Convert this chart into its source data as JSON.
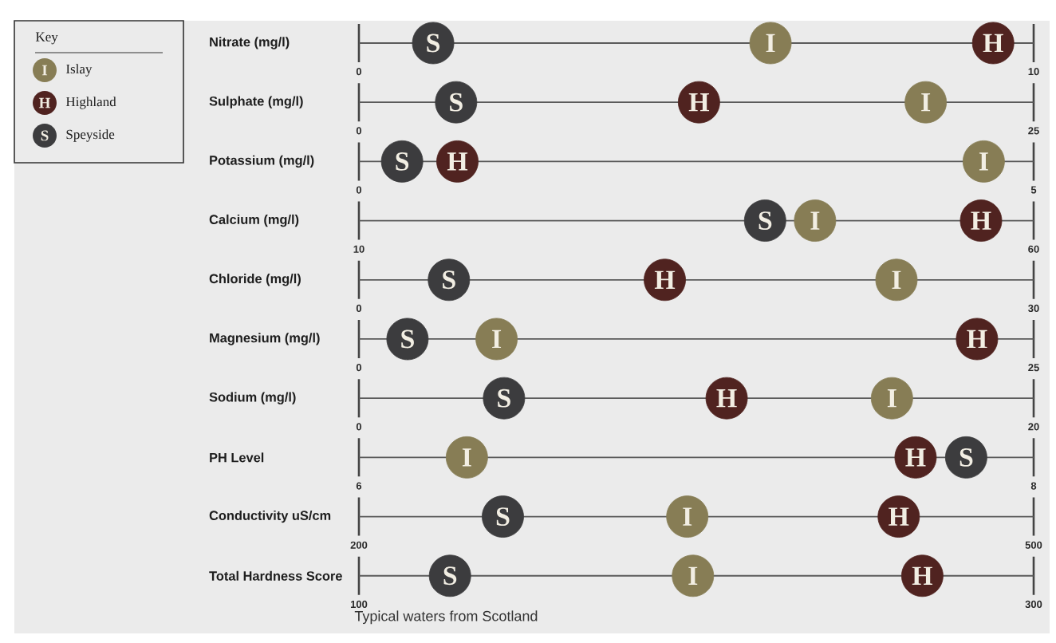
{
  "chart_data": [
    {
      "type": "scatter",
      "orientation": "horizontal",
      "categories": [
        "Nitrate (mg/l)"
      ],
      "xlim": [
        0,
        10
      ],
      "xticks": [
        0,
        10
      ],
      "marker": "circle",
      "legend": "left",
      "legend_title": "Key",
      "series": [
        {
          "name": "Islay",
          "color": "#877d55",
          "values": [
            6.1
          ],
          "value_labels": [
            "I"
          ]
        },
        {
          "name": "Highland",
          "color": "#502320",
          "values": [
            9.4
          ],
          "value_labels": [
            "H"
          ]
        },
        {
          "name": "Speyside",
          "color": "#3c3c3e",
          "values": [
            1.1
          ],
          "value_labels": [
            "S"
          ]
        }
      ]
    },
    {
      "type": "scatter",
      "orientation": "horizontal",
      "categories": [
        "Sulphate (mg/l)"
      ],
      "xlim": [
        0,
        25
      ],
      "xticks": [
        0,
        25
      ],
      "marker": "circle",
      "series": [
        {
          "color": "#877d55",
          "values": [
            21.0
          ],
          "value_labels": [
            "I"
          ]
        },
        {
          "color": "#502320",
          "values": [
            12.6
          ],
          "value_labels": [
            "H"
          ]
        },
        {
          "color": "#3c3c3e",
          "values": [
            3.6
          ],
          "value_labels": [
            "S"
          ]
        }
      ]
    },
    {
      "type": "scatter",
      "orientation": "horizontal",
      "categories": [
        "Potassium (mg/l)"
      ],
      "xlim": [
        0,
        5
      ],
      "xticks": [
        0,
        5
      ],
      "marker": "circle",
      "series": [
        {
          "color": "#877d55",
          "values": [
            4.63
          ],
          "value_labels": [
            "I"
          ]
        },
        {
          "color": "#502320",
          "values": [
            0.73
          ],
          "value_labels": [
            "H"
          ]
        },
        {
          "color": "#3c3c3e",
          "values": [
            0.32
          ],
          "value_labels": [
            "S"
          ]
        }
      ]
    },
    {
      "type": "scatter",
      "orientation": "horizontal",
      "categories": [
        "Calcium (mg/l)"
      ],
      "xlim": [
        10,
        60
      ],
      "xticks": [
        10,
        60
      ],
      "marker": "circle",
      "series": [
        {
          "color": "#877d55",
          "values": [
            43.8
          ],
          "value_labels": [
            "I"
          ]
        },
        {
          "color": "#502320",
          "values": [
            56.1
          ],
          "value_labels": [
            "H"
          ]
        },
        {
          "color": "#3c3c3e",
          "values": [
            40.1
          ],
          "value_labels": [
            "S"
          ]
        }
      ]
    },
    {
      "type": "scatter",
      "orientation": "horizontal",
      "categories": [
        "Chloride (mg/l)"
      ],
      "xlim": [
        0,
        30
      ],
      "xticks": [
        0,
        30
      ],
      "marker": "circle",
      "series": [
        {
          "color": "#877d55",
          "values": [
            23.9
          ],
          "value_labels": [
            "I"
          ]
        },
        {
          "color": "#502320",
          "values": [
            13.6
          ],
          "value_labels": [
            "H"
          ]
        },
        {
          "color": "#3c3c3e",
          "values": [
            4.0
          ],
          "value_labels": [
            "S"
          ]
        }
      ]
    },
    {
      "type": "scatter",
      "orientation": "horizontal",
      "categories": [
        "Magnesium (mg/l)"
      ],
      "xlim": [
        0,
        25
      ],
      "xticks": [
        0,
        25
      ],
      "marker": "circle",
      "series": [
        {
          "color": "#877d55",
          "values": [
            5.1
          ],
          "value_labels": [
            "I"
          ]
        },
        {
          "color": "#502320",
          "values": [
            22.9
          ],
          "value_labels": [
            "H"
          ]
        },
        {
          "color": "#3c3c3e",
          "values": [
            1.8
          ],
          "value_labels": [
            "S"
          ]
        }
      ]
    },
    {
      "type": "scatter",
      "orientation": "horizontal",
      "categories": [
        "Sodium (mg/l)"
      ],
      "xlim": [
        0,
        20
      ],
      "xticks": [
        0,
        20
      ],
      "marker": "circle",
      "series": [
        {
          "color": "#877d55",
          "values": [
            15.8
          ],
          "value_labels": [
            "I"
          ]
        },
        {
          "color": "#502320",
          "values": [
            10.9
          ],
          "value_labels": [
            "H"
          ]
        },
        {
          "color": "#3c3c3e",
          "values": [
            4.3
          ],
          "value_labels": [
            "S"
          ]
        }
      ]
    },
    {
      "type": "scatter",
      "orientation": "horizontal",
      "categories": [
        "PH Level"
      ],
      "xlim": [
        6,
        8
      ],
      "xticks": [
        6,
        8
      ],
      "marker": "circle",
      "series": [
        {
          "color": "#877d55",
          "values": [
            6.32
          ],
          "value_labels": [
            "I"
          ]
        },
        {
          "color": "#502320",
          "values": [
            7.65
          ],
          "value_labels": [
            "H"
          ]
        },
        {
          "color": "#3c3c3e",
          "values": [
            7.8
          ],
          "value_labels": [
            "S"
          ]
        }
      ]
    },
    {
      "type": "scatter",
      "orientation": "horizontal",
      "categories": [
        "Conductivity uS/cm"
      ],
      "xlim": [
        200,
        500
      ],
      "xticks": [
        200,
        500
      ],
      "marker": "circle",
      "series": [
        {
          "color": "#877d55",
          "values": [
            346
          ],
          "value_labels": [
            "I"
          ]
        },
        {
          "color": "#502320",
          "values": [
            440
          ],
          "value_labels": [
            "H"
          ]
        },
        {
          "color": "#3c3c3e",
          "values": [
            264
          ],
          "value_labels": [
            "S"
          ]
        }
      ]
    },
    {
      "type": "scatter",
      "orientation": "horizontal",
      "categories": [
        "Total Hardness Score"
      ],
      "xlim": [
        100,
        300
      ],
      "xticks": [
        100,
        300
      ],
      "marker": "circle",
      "annotations": [
        "Typical waters from Scotland"
      ],
      "series": [
        {
          "color": "#877d55",
          "values": [
            199
          ],
          "value_labels": [
            "I"
          ]
        },
        {
          "color": "#502320",
          "values": [
            267
          ],
          "value_labels": [
            "H"
          ]
        },
        {
          "color": "#3c3c3e",
          "values": [
            127
          ],
          "value_labels": [
            "S"
          ]
        }
      ]
    }
  ]
}
